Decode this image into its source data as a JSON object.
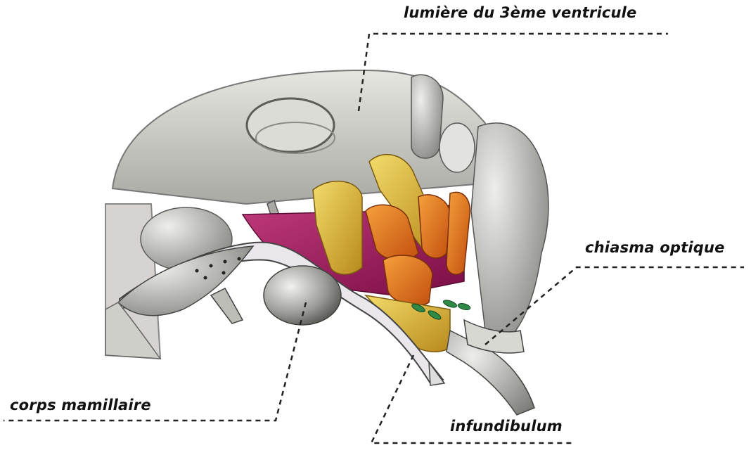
{
  "labels": {
    "ventricle": "lumière du 3ème ventricule",
    "chiasma": "chiasma optique",
    "mamillary": "corps mamillaire",
    "infundibulum": "infundibulum"
  },
  "colors": {
    "gray_tissue": "#c9c9c3",
    "gray_dark": "#6e6e6a",
    "magenta": "#a0125a",
    "yellow_nucleus": "#d8b23a",
    "orange_nucleus": "#e2731c",
    "green_vessel": "#2f8a46",
    "leader_line": "#222222"
  }
}
